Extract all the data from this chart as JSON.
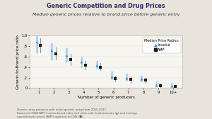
{
  "title": "Generic Competition and Drug Prices",
  "subtitle": "Median generic prices relative to brand price before generic entry",
  "xlabel": "Number of generic producers",
  "ylabel": "Generic-to-Brand price ratio",
  "outer_bg_color": "#e8e4dc",
  "plot_bg_color": "#f7f5f0",
  "x_labels": [
    "1",
    "2",
    "3",
    "4",
    "5",
    "6",
    "7",
    "8",
    "9",
    "10+"
  ],
  "x_vals": [
    1,
    2,
    3,
    4,
    5,
    6,
    7,
    8,
    9,
    10
  ],
  "invoice_median": [
    0.88,
    0.72,
    0.62,
    0.5,
    0.44,
    0.22,
    0.2,
    0.18,
    0.06,
    0.05
  ],
  "invoice_low": [
    0.68,
    0.55,
    0.5,
    0.4,
    0.38,
    0.16,
    0.14,
    0.12,
    0.03,
    0.02
  ],
  "invoice_high": [
    1.0,
    0.86,
    0.76,
    0.6,
    0.52,
    0.32,
    0.28,
    0.24,
    0.12,
    0.1
  ],
  "amp_median": [
    0.82,
    0.65,
    0.54,
    0.44,
    0.4,
    0.18,
    0.16,
    0.15,
    0.04,
    0.03
  ],
  "amp_low": [
    0.68,
    0.55,
    0.44,
    0.36,
    0.34,
    0.12,
    0.1,
    0.1,
    0.02,
    0.01
  ],
  "amp_high": [
    0.95,
    0.78,
    0.65,
    0.52,
    0.48,
    0.24,
    0.22,
    0.2,
    0.08,
    0.06
  ],
  "invoice_color": "#4a90d9",
  "invoice_ci_color": "#a0c8f0",
  "amp_color": "#1a1a1a",
  "amp_ci_color": "#888888",
  "legend_title": "Median Price Ratios:",
  "legend_invoice": "Invoice",
  "legend_amp": "AMP",
  "footnote": "Generic drug products with initial generic entry from 2015-2017.\nBased on IQVIA NMP invoice-based sales and units sold in pharmacies (▲) and average\nmanufacturer prices (AMP) reported to CMS (■).",
  "ylim": [
    0,
    1.0
  ],
  "yticks": [
    0.0,
    0.2,
    0.4,
    0.6,
    0.8,
    1.0
  ],
  "ytick_labels": [
    "0",
    ".2",
    ".4",
    ".6",
    ".8",
    "1.0"
  ],
  "title_fontsize": 5.8,
  "subtitle_fontsize": 4.5,
  "axis_fontsize": 4.0,
  "tick_fontsize": 3.8,
  "legend_fontsize": 3.5,
  "footnote_fontsize": 2.8
}
